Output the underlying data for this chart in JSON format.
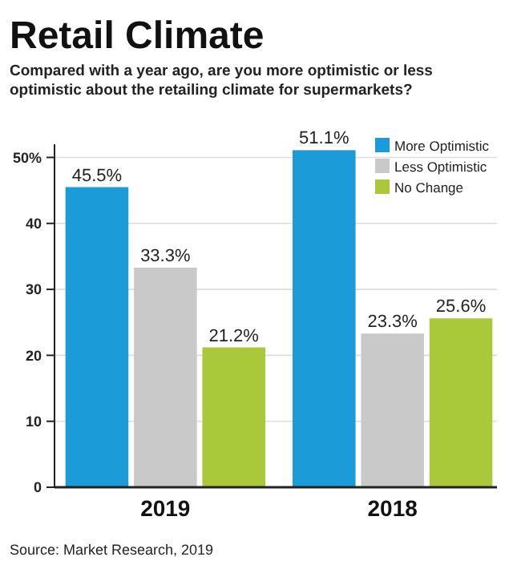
{
  "chart_data": {
    "type": "bar",
    "title": "Retail Climate",
    "subtitle": "Compared with a year ago, are you more optimistic or less optimistic about the retailing climate for supermarkets?",
    "categories": [
      "2019",
      "2018"
    ],
    "series": [
      {
        "name": "More Optimistic",
        "color": "#1b9bd7",
        "values": [
          45.5,
          51.1
        ],
        "value_labels": [
          "45.5%",
          "51.1%"
        ]
      },
      {
        "name": "Less Optimistic",
        "color": "#c9c9c9",
        "values": [
          33.3,
          23.3
        ],
        "value_labels": [
          "33.3%",
          "23.3%"
        ]
      },
      {
        "name": "No Change",
        "color": "#a9c93b",
        "values": [
          21.2,
          25.6
        ],
        "value_labels": [
          "21.2%",
          "25.6%"
        ]
      }
    ],
    "ylim": [
      0,
      52
    ],
    "yticks": [
      0,
      10,
      20,
      30,
      40,
      {
        "value": 50,
        "label": "50%"
      }
    ],
    "grid": "y",
    "legend": "top right",
    "annotations": [
      "Source: Market Research, 2019"
    ]
  }
}
